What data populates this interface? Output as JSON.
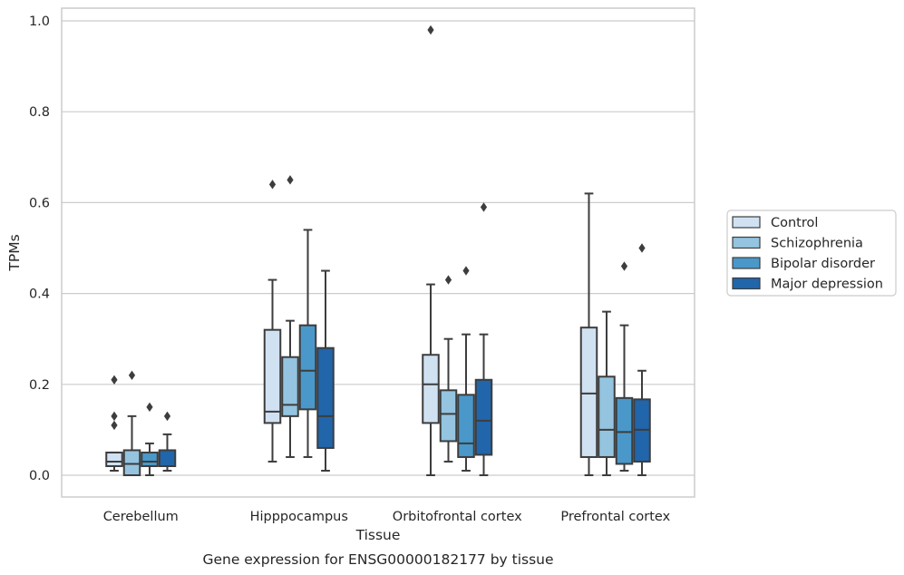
{
  "chart_data": {
    "type": "box",
    "title": "",
    "caption": "Gene expression for ENSG00000182177 by tissue",
    "xlabel": "Tissue",
    "ylabel": "TPMs",
    "ylim": [
      -0.045,
      1.03
    ],
    "yticks": [
      0.0,
      0.2,
      0.4,
      0.6,
      0.8,
      1.0
    ],
    "ytick_labels": [
      "0.0",
      "0.2",
      "0.4",
      "0.6",
      "0.8",
      "1.0"
    ],
    "categories": [
      "Cerebellum",
      "Hipppocampus",
      "Orbitofrontal cortex",
      "Prefrontal cortex"
    ],
    "grid": "horizontal",
    "legend_position": "right",
    "series": [
      {
        "name": "Control",
        "color": "#d0e1f2",
        "boxes": [
          {
            "whislo": 0.01,
            "q1": 0.02,
            "med": 0.03,
            "q3": 0.05,
            "whishi": 0.05,
            "fliers": [
              0.11,
              0.13,
              0.21
            ]
          },
          {
            "whislo": 0.03,
            "q1": 0.115,
            "med": 0.14,
            "q3": 0.32,
            "whishi": 0.43,
            "fliers": [
              0.64
            ]
          },
          {
            "whislo": 0.0,
            "q1": 0.115,
            "med": 0.2,
            "q3": 0.265,
            "whishi": 0.42,
            "fliers": [
              0.98
            ]
          },
          {
            "whislo": 0.0,
            "q1": 0.04,
            "med": 0.18,
            "q3": 0.325,
            "whishi": 0.62,
            "fliers": []
          }
        ]
      },
      {
        "name": "Schizophrenia",
        "color": "#94c4df",
        "boxes": [
          {
            "whislo": 0.0,
            "q1": 0.0,
            "med": 0.025,
            "q3": 0.055,
            "whishi": 0.13,
            "fliers": [
              0.22
            ]
          },
          {
            "whislo": 0.04,
            "q1": 0.13,
            "med": 0.155,
            "q3": 0.26,
            "whishi": 0.34,
            "fliers": [
              0.65
            ]
          },
          {
            "whislo": 0.03,
            "q1": 0.075,
            "med": 0.135,
            "q3": 0.187,
            "whishi": 0.3,
            "fliers": [
              0.43
            ]
          },
          {
            "whislo": 0.0,
            "q1": 0.04,
            "med": 0.1,
            "q3": 0.217,
            "whishi": 0.36,
            "fliers": []
          }
        ]
      },
      {
        "name": "Bipolar disorder",
        "color": "#4a98c9",
        "boxes": [
          {
            "whislo": 0.0,
            "q1": 0.02,
            "med": 0.03,
            "q3": 0.05,
            "whishi": 0.07,
            "fliers": [
              0.15
            ]
          },
          {
            "whislo": 0.04,
            "q1": 0.145,
            "med": 0.23,
            "q3": 0.33,
            "whishi": 0.54,
            "fliers": []
          },
          {
            "whislo": 0.01,
            "q1": 0.04,
            "med": 0.07,
            "q3": 0.177,
            "whishi": 0.31,
            "fliers": [
              0.45
            ]
          },
          {
            "whislo": 0.01,
            "q1": 0.025,
            "med": 0.095,
            "q3": 0.17,
            "whishi": 0.33,
            "fliers": [
              0.46
            ]
          }
        ]
      },
      {
        "name": "Major depression",
        "color": "#2165ab",
        "boxes": [
          {
            "whislo": 0.01,
            "q1": 0.02,
            "med": 0.02,
            "q3": 0.055,
            "whishi": 0.09,
            "fliers": [
              0.13
            ]
          },
          {
            "whislo": 0.01,
            "q1": 0.06,
            "med": 0.13,
            "q3": 0.28,
            "whishi": 0.45,
            "fliers": []
          },
          {
            "whislo": 0.0,
            "q1": 0.045,
            "med": 0.12,
            "q3": 0.21,
            "whishi": 0.31,
            "fliers": [
              0.59
            ]
          },
          {
            "whislo": 0.0,
            "q1": 0.03,
            "med": 0.1,
            "q3": 0.167,
            "whishi": 0.23,
            "fliers": [
              0.5
            ]
          }
        ]
      }
    ]
  }
}
